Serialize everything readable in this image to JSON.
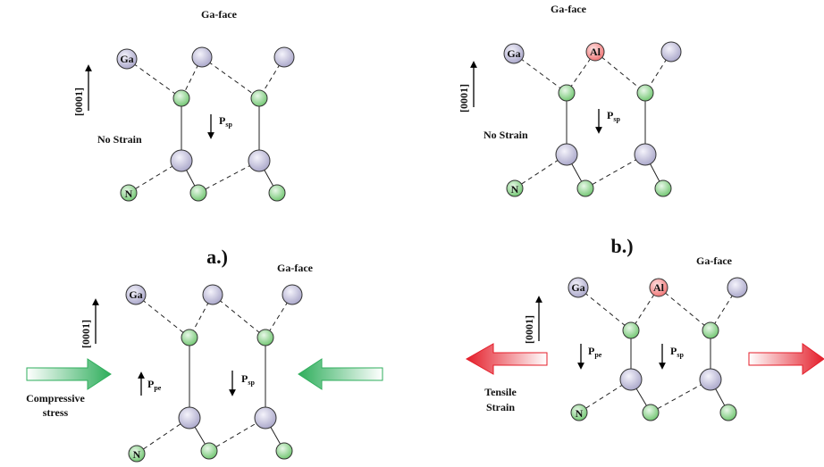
{
  "panels": {
    "a": {
      "face_label": "Ga-face",
      "direction_label": "[0001]",
      "strain_label": "No Strain",
      "psp_main": "P",
      "psp_sub": "sp",
      "ga_label": "Ga",
      "n_label": "N"
    },
    "b": {
      "face_label": "Ga-face",
      "direction_label": "[0001]",
      "strain_label": "No Strain",
      "psp_main": "P",
      "psp_sub": "sp",
      "ga_label": "Ga",
      "al_label": "Al",
      "n_label": "N"
    },
    "c": {
      "face_label": "Ga-face",
      "direction_label": "[0001]",
      "stress_label_line1": "Compressive",
      "stress_label_line2": "stress",
      "ppe_main": "P",
      "ppe_sub": "pe",
      "psp_main": "P",
      "psp_sub": "sp",
      "ga_label": "Ga",
      "n_label": "N"
    },
    "d": {
      "face_label": "Ga-face",
      "direction_label": "[0001]",
      "strain_label_line1": "Tensile",
      "strain_label_line2": "Strain",
      "ppe_main": "P",
      "ppe_sub": "pe",
      "psp_main": "P",
      "psp_sub": "sp",
      "ga_label": "Ga",
      "al_label": "Al",
      "n_label": "N"
    }
  },
  "captions": {
    "a": "a.)",
    "b": "b.)"
  },
  "colors": {
    "ga_atom": "#c4c2dc",
    "al_atom": "#f4a0a0",
    "n_atom": "#9ed39e",
    "compressive_arrow": "#3cb86b",
    "tensile_arrow": "#e8323c"
  }
}
